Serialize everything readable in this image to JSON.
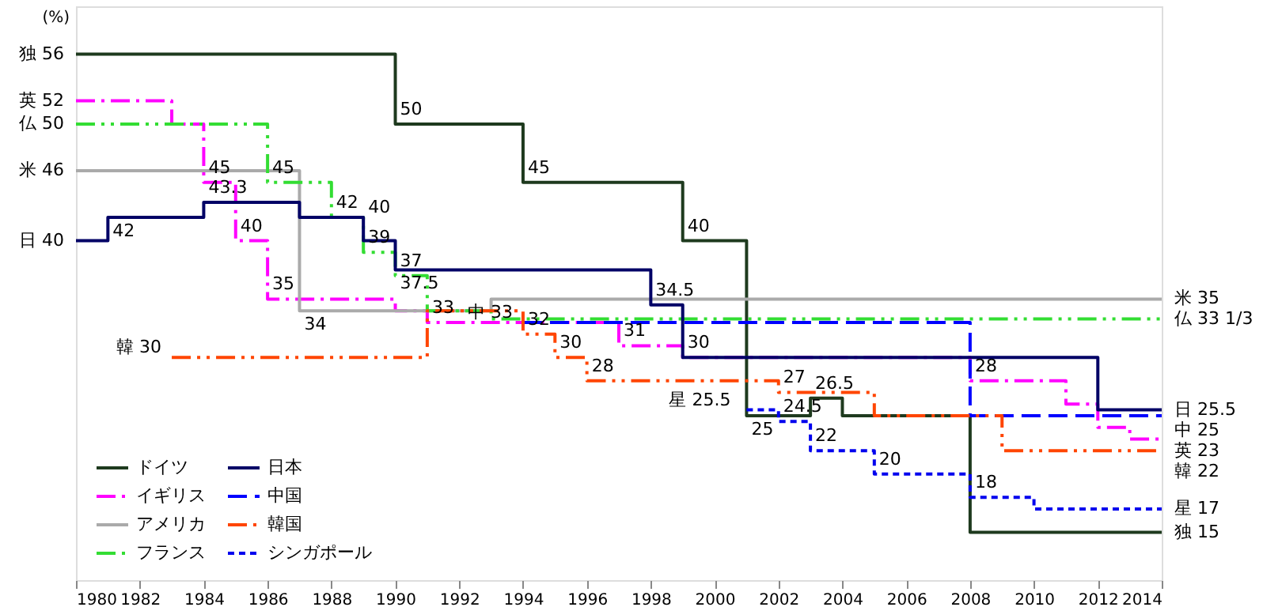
{
  "chart_data": {
    "type": "step",
    "ylabel": "(%)",
    "xlim": [
      1980,
      2014
    ],
    "xticks": [
      1980,
      1982,
      1984,
      1986,
      1988,
      1990,
      1992,
      1994,
      1996,
      1998,
      2000,
      2002,
      2004,
      2006,
      2008,
      2010,
      2012,
      2014
    ],
    "tick_labels": "x",
    "grid": false,
    "legend": "bottom left",
    "series": [
      {
        "name": "ドイツ",
        "color": "#1e3a1e",
        "line_style": "solid",
        "x": [
          1980,
          1990,
          1994,
          1999,
          2001,
          2003,
          2004,
          2008,
          2014
        ],
        "values": [
          56,
          50,
          45,
          40,
          25,
          26.5,
          25,
          15,
          15
        ],
        "value_labels": [
          "独 56",
          "50",
          "45",
          "40",
          "25",
          "26.5",
          null,
          null,
          "独 15"
        ]
      },
      {
        "name": "イギリス",
        "color": "#ff00ff",
        "line_style": "dashdot",
        "x": [
          1980,
          1983,
          1984,
          1985,
          1986,
          1990,
          1991,
          1997,
          1999,
          2008,
          2011,
          2012,
          2013,
          2014
        ],
        "values": [
          52,
          50,
          45,
          40,
          35,
          34,
          33,
          31,
          30,
          28,
          26,
          24,
          23,
          23
        ],
        "value_labels": [
          "英 52",
          null,
          "45",
          "40",
          "35",
          null,
          "33",
          "31",
          null,
          "28",
          null,
          null,
          null,
          "英 23"
        ]
      },
      {
        "name": "アメリカ",
        "color": "#aaaaaa",
        "line_style": "solid",
        "x": [
          1980,
          1987,
          1993,
          2014
        ],
        "values": [
          46,
          34,
          35,
          35
        ],
        "value_labels": [
          "米 46",
          "34",
          null,
          "米 35"
        ]
      },
      {
        "name": "フランス",
        "color": "#33dd33",
        "line_style": "dashdotdot",
        "x": [
          1980,
          1986,
          1988,
          1989,
          1990,
          1991,
          1993,
          2014
        ],
        "values": [
          50,
          45,
          42,
          39,
          37,
          34,
          33.3,
          33.3
        ],
        "value_labels": [
          "仏 50",
          "45",
          "42",
          "39",
          "37",
          null,
          null,
          "仏 33 1/3"
        ]
      },
      {
        "name": "日本",
        "color": "#000066",
        "line_style": "solid",
        "x": [
          1980,
          1981,
          1984,
          1987,
          1989,
          1990,
          1998,
          1999,
          2012,
          2014
        ],
        "values": [
          40,
          42,
          43.3,
          42,
          40,
          37.5,
          34.5,
          30,
          25.5,
          25.5
        ],
        "value_labels": [
          "日 40",
          "42",
          "43.3",
          null,
          "40",
          "37.5",
          "34.5",
          "30",
          null,
          "日 25.5"
        ]
      },
      {
        "name": "中国",
        "color": "#0000ff",
        "line_style": "longdash",
        "x": [
          1994,
          2008,
          2014
        ],
        "values": [
          33,
          25,
          25
        ],
        "value_labels": [
          "中 33",
          null,
          "中 25"
        ]
      },
      {
        "name": "韓国",
        "color": "#ff4500",
        "line_style": "dashdotdot",
        "x": [
          1983,
          1991,
          1994,
          1995,
          1996,
          2002,
          2005,
          2009,
          2014
        ],
        "values": [
          30,
          34,
          32,
          30,
          28,
          27,
          25,
          22,
          22
        ],
        "value_labels": [
          "韓 30",
          null,
          "32",
          "30",
          "28",
          "27",
          null,
          null,
          "韓 22"
        ]
      },
      {
        "name": "シンガポール",
        "color": "#0000ee",
        "line_style": "dashed",
        "x": [
          2001,
          2002,
          2003,
          2005,
          2008,
          2010,
          2014
        ],
        "values": [
          25.5,
          24.5,
          22,
          20,
          18,
          17,
          17
        ],
        "value_labels": [
          "星 25.5",
          "24.5",
          "22",
          "20",
          "18",
          null,
          "星 17"
        ]
      }
    ]
  }
}
